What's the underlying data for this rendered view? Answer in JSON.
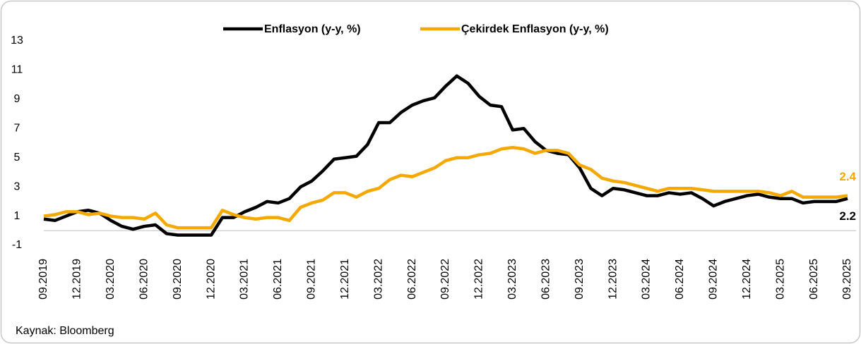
{
  "chart_data": {
    "type": "line",
    "categories": [
      "09.2019",
      null,
      null,
      "12.2019",
      null,
      null,
      "03.2020",
      null,
      null,
      "06.2020",
      null,
      null,
      "09.2020",
      null,
      null,
      "12.2020",
      null,
      null,
      "03.2021",
      null,
      null,
      "06.2021",
      null,
      null,
      "09.2021",
      null,
      null,
      "12.2021",
      null,
      null,
      "03.2022",
      null,
      null,
      "06.2022",
      null,
      null,
      "09.2022",
      null,
      null,
      "12.2022",
      null,
      null,
      "03.2023",
      null,
      null,
      "06.2023",
      null,
      null,
      "09.2023",
      null,
      null,
      "12.2023",
      null,
      null,
      "03.2024",
      null,
      null,
      "06.2024",
      null,
      null,
      "09.2024",
      null,
      null,
      "12.2024",
      null,
      null,
      "03.2025",
      null,
      null,
      "06.2025",
      null,
      null,
      "09.2025"
    ],
    "series": [
      {
        "name": "Enflasyon (y-y, %)",
        "color": "#000000",
        "values": [
          0.8,
          0.7,
          1.0,
          1.3,
          1.4,
          1.2,
          0.7,
          0.3,
          0.1,
          0.3,
          0.4,
          -0.2,
          -0.3,
          -0.3,
          -0.3,
          -0.3,
          0.9,
          0.9,
          1.3,
          1.6,
          2.0,
          1.9,
          2.2,
          3.0,
          3.4,
          4.1,
          4.9,
          5.0,
          5.1,
          5.9,
          7.4,
          7.4,
          8.1,
          8.6,
          8.9,
          9.1,
          9.9,
          10.6,
          10.1,
          9.2,
          8.6,
          8.5,
          6.9,
          7.0,
          6.1,
          5.5,
          5.3,
          5.2,
          4.3,
          2.9,
          2.4,
          2.9,
          2.8,
          2.6,
          2.4,
          2.4,
          2.6,
          2.5,
          2.6,
          2.2,
          1.7,
          2.0,
          2.2,
          2.4,
          2.5,
          2.3,
          2.2,
          2.2,
          1.9,
          2.0,
          2.0,
          2.0,
          2.2
        ]
      },
      {
        "name": "Çekirdek Enflasyon (y-y, %)",
        "color": "#f5a800",
        "values": [
          1.0,
          1.1,
          1.3,
          1.3,
          1.1,
          1.2,
          1.0,
          0.9,
          0.9,
          0.8,
          1.2,
          0.4,
          0.2,
          0.2,
          0.2,
          0.2,
          1.4,
          1.1,
          0.9,
          0.8,
          0.9,
          0.9,
          0.7,
          1.6,
          1.9,
          2.1,
          2.6,
          2.6,
          2.3,
          2.7,
          2.9,
          3.5,
          3.8,
          3.7,
          4.0,
          4.3,
          4.8,
          5.0,
          5.0,
          5.2,
          5.3,
          5.6,
          5.7,
          5.6,
          5.3,
          5.5,
          5.5,
          5.3,
          4.5,
          4.2,
          3.6,
          3.4,
          3.3,
          3.1,
          2.9,
          2.7,
          2.9,
          2.9,
          2.9,
          2.8,
          2.7,
          2.7,
          2.7,
          2.7,
          2.7,
          2.6,
          2.4,
          2.7,
          2.3,
          2.3,
          2.3,
          2.3,
          2.4
        ]
      }
    ],
    "ylim": [
      -1,
      13
    ],
    "yticks": [
      -1,
      1,
      3,
      5,
      7,
      9,
      11,
      13
    ],
    "grid": false,
    "legend": "top",
    "source": "Kaynak: Bloomberg"
  }
}
